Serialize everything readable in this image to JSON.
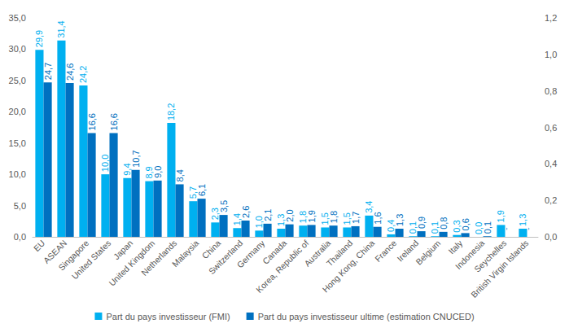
{
  "chart_data": {
    "type": "bar",
    "categories": [
      "EU",
      "ASEAN",
      "Singapore",
      "United States",
      "Japan",
      "United Kingdom",
      "Netherlands",
      "Malaysia",
      "China",
      "Switzerland",
      "Germany",
      "Canada",
      "Korea, Republic of",
      "Australia",
      "Thailand",
      "Hong Kong, China",
      "France",
      "Ireland",
      "Belgium",
      "Italy",
      "Indonesia",
      "Seychelles",
      "British Virgin Islands"
    ],
    "series": [
      {
        "name": "Part du pays investisseur (FMI)",
        "color": "#00B0F0",
        "values": [
          29.9,
          31.4,
          24.2,
          10.0,
          9.4,
          8.9,
          18.2,
          5.7,
          2.3,
          1.4,
          1.0,
          1.3,
          1.8,
          1.5,
          1.5,
          3.4,
          0.4,
          0.1,
          0.1,
          0.3,
          0.0,
          1.9,
          1.3
        ],
        "value_labels": [
          "29,9",
          "31,4",
          "24,2",
          "10,0",
          "9,4",
          "8,9",
          "18,2",
          "5,7",
          "2,3",
          "1,4",
          "1,0",
          "1,3",
          "1,8",
          "1,5",
          "1,5",
          "3,4",
          "0,4",
          "0,1",
          "0,1",
          "0,3",
          "0,0",
          "1,9",
          "1,3"
        ]
      },
      {
        "name": "Part du pays investisseur ultime (estimation CNUCED)",
        "color": "#0070C0",
        "values": [
          24.7,
          24.6,
          16.6,
          16.6,
          10.7,
          9.0,
          8.4,
          6.1,
          3.5,
          2.6,
          2.1,
          2.0,
          1.9,
          1.8,
          1.7,
          1.6,
          1.3,
          0.9,
          0.8,
          0.6,
          0.1,
          null,
          null
        ],
        "value_labels": [
          "24,7",
          "24,6",
          "16,6",
          "16,6",
          "10,7",
          "9,0",
          "8,4",
          "6,1",
          "3,5",
          "2,6",
          "2,1",
          "2,0",
          "1,9",
          "1,8",
          "1,7",
          "1,6",
          "1,3",
          "0,9",
          "0,8",
          "0,6",
          "0,1",
          "-",
          "-"
        ]
      }
    ],
    "ylim": [
      0,
      35
    ],
    "yticks": [
      {
        "value": 0,
        "label": "0,0"
      },
      {
        "value": 5,
        "label": "5,0"
      },
      {
        "value": 10,
        "label": "10,0"
      },
      {
        "value": 15,
        "label": "15,0"
      },
      {
        "value": 20,
        "label": "20,0"
      },
      {
        "value": 25,
        "label": "25,0"
      },
      {
        "value": 30,
        "label": "30,0"
      },
      {
        "value": 35,
        "label": "35,0"
      }
    ],
    "y2lim": [
      0,
      1.2
    ],
    "y2ticks": [
      {
        "value": 0,
        "label": "0,0"
      },
      {
        "value": 0.2,
        "label": "0,2"
      },
      {
        "value": 0.4,
        "label": "0,4"
      },
      {
        "value": 0.6,
        "label": "0,6"
      },
      {
        "value": 0.8,
        "label": "0,8"
      },
      {
        "value": 1.0,
        "label": "1,0"
      },
      {
        "value": 1.2,
        "label": "1,2"
      }
    ],
    "data_labels": true,
    "grid": false,
    "legend": "bottom"
  }
}
